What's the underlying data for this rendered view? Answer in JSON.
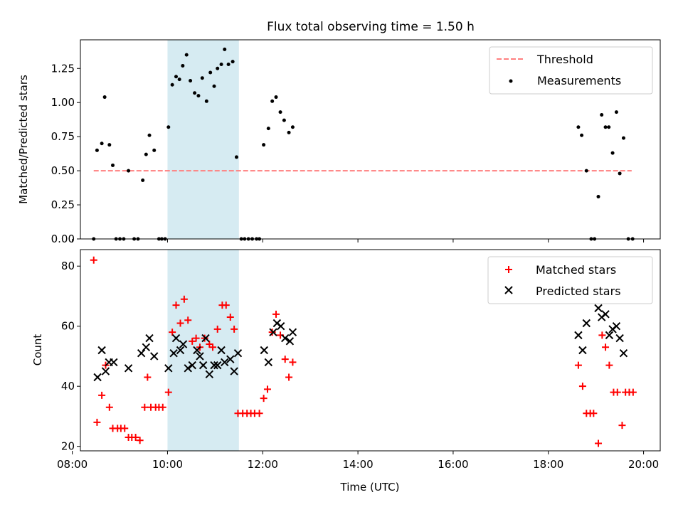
{
  "title": "Flux total observing time = 1.50 h",
  "colors": {
    "threshold": "#ff7f7f",
    "measurement": "#000000",
    "matched": "#ff0000",
    "predicted": "#000000",
    "span": "#add8e6"
  },
  "chart_data": [
    {
      "type": "scatter",
      "ylabel": "Matched/Predicted stars",
      "xlim": [
        8.17,
        20.35
      ],
      "ylim": [
        0.0,
        1.46
      ],
      "yticks": [
        0.0,
        0.25,
        0.5,
        0.75,
        1.0,
        1.25
      ],
      "ytick_labels": [
        "0.00",
        "0.25",
        "0.50",
        "0.75",
        "1.00",
        "1.25"
      ],
      "highlight_span": [
        10.0,
        11.5
      ],
      "legend": {
        "placement": "top-right",
        "entries": [
          "Threshold",
          "Measurements"
        ]
      },
      "threshold": {
        "name": "Threshold",
        "y": 0.5,
        "x_range": [
          8.45,
          19.75
        ]
      },
      "series": [
        {
          "name": "Measurements",
          "points": [
            [
              8.45,
              0.0
            ],
            [
              8.52,
              0.65
            ],
            [
              8.62,
              0.7
            ],
            [
              8.68,
              1.04
            ],
            [
              8.78,
              0.69
            ],
            [
              8.85,
              0.54
            ],
            [
              8.92,
              0.0
            ],
            [
              9.0,
              0.0
            ],
            [
              9.08,
              0.0
            ],
            [
              9.18,
              0.5
            ],
            [
              9.3,
              0.0
            ],
            [
              9.38,
              0.0
            ],
            [
              9.48,
              0.43
            ],
            [
              9.55,
              0.62
            ],
            [
              9.62,
              0.76
            ],
            [
              9.72,
              0.65
            ],
            [
              9.82,
              0.0
            ],
            [
              9.88,
              0.0
            ],
            [
              9.95,
              0.0
            ],
            [
              10.02,
              0.82
            ],
            [
              10.1,
              1.13
            ],
            [
              10.18,
              1.19
            ],
            [
              10.25,
              1.17
            ],
            [
              10.32,
              1.27
            ],
            [
              10.4,
              1.35
            ],
            [
              10.48,
              1.16
            ],
            [
              10.57,
              1.07
            ],
            [
              10.65,
              1.05
            ],
            [
              10.73,
              1.18
            ],
            [
              10.82,
              1.01
            ],
            [
              10.9,
              1.22
            ],
            [
              10.98,
              1.12
            ],
            [
              11.05,
              1.25
            ],
            [
              11.13,
              1.28
            ],
            [
              11.2,
              1.39
            ],
            [
              11.28,
              1.28
            ],
            [
              11.37,
              1.3
            ],
            [
              11.45,
              0.6
            ],
            [
              11.55,
              0.0
            ],
            [
              11.62,
              0.0
            ],
            [
              11.7,
              0.0
            ],
            [
              11.78,
              0.0
            ],
            [
              11.87,
              0.0
            ],
            [
              11.93,
              0.0
            ],
            [
              12.02,
              0.69
            ],
            [
              12.12,
              0.81
            ],
            [
              12.2,
              1.01
            ],
            [
              12.28,
              1.04
            ],
            [
              12.37,
              0.93
            ],
            [
              12.45,
              0.87
            ],
            [
              12.55,
              0.78
            ],
            [
              12.63,
              0.82
            ],
            [
              18.63,
              0.82
            ],
            [
              18.7,
              0.76
            ],
            [
              18.8,
              0.5
            ],
            [
              18.9,
              0.0
            ],
            [
              18.97,
              0.0
            ],
            [
              19.05,
              0.31
            ],
            [
              19.12,
              0.91
            ],
            [
              19.2,
              0.82
            ],
            [
              19.27,
              0.82
            ],
            [
              19.35,
              0.63
            ],
            [
              19.43,
              0.93
            ],
            [
              19.5,
              0.48
            ],
            [
              19.58,
              0.74
            ],
            [
              19.68,
              0.0
            ],
            [
              19.77,
              0.0
            ]
          ]
        }
      ]
    },
    {
      "type": "scatter",
      "xlabel": "Time (UTC)",
      "ylabel": "Count",
      "xlim": [
        8.17,
        20.35
      ],
      "ylim": [
        18.5,
        85.5
      ],
      "yticks": [
        20,
        40,
        60,
        80
      ],
      "ytick_labels": [
        "20",
        "40",
        "60",
        "80"
      ],
      "xticks": [
        8,
        10,
        12,
        14,
        16,
        18,
        20
      ],
      "xtick_labels": [
        "08:00",
        "10:00",
        "12:00",
        "14:00",
        "16:00",
        "18:00",
        "20:00"
      ],
      "highlight_span": [
        10.0,
        11.5
      ],
      "legend": {
        "placement": "top-right",
        "entries": [
          "Matched stars",
          "Predicted stars"
        ]
      },
      "series": [
        {
          "name": "Matched stars",
          "marker": "plus",
          "points": [
            [
              8.45,
              82
            ],
            [
              8.52,
              28
            ],
            [
              8.62,
              37
            ],
            [
              8.7,
              47
            ],
            [
              8.78,
              33
            ],
            [
              8.85,
              26
            ],
            [
              8.95,
              26
            ],
            [
              9.02,
              26
            ],
            [
              9.1,
              26
            ],
            [
              9.18,
              23
            ],
            [
              9.25,
              23
            ],
            [
              9.33,
              23
            ],
            [
              9.42,
              22
            ],
            [
              9.52,
              33
            ],
            [
              9.58,
              43
            ],
            [
              9.65,
              33
            ],
            [
              9.75,
              33
            ],
            [
              9.82,
              33
            ],
            [
              9.9,
              33
            ],
            [
              10.02,
              38
            ],
            [
              10.1,
              58
            ],
            [
              10.18,
              67
            ],
            [
              10.27,
              61
            ],
            [
              10.35,
              69
            ],
            [
              10.43,
              62
            ],
            [
              10.52,
              55
            ],
            [
              10.6,
              56
            ],
            [
              10.68,
              53
            ],
            [
              10.78,
              56
            ],
            [
              10.88,
              54
            ],
            [
              10.95,
              53
            ],
            [
              11.05,
              59
            ],
            [
              11.15,
              67
            ],
            [
              11.23,
              67
            ],
            [
              11.32,
              63
            ],
            [
              11.4,
              59
            ],
            [
              11.48,
              31
            ],
            [
              11.58,
              31
            ],
            [
              11.67,
              31
            ],
            [
              11.75,
              31
            ],
            [
              11.83,
              31
            ],
            [
              11.93,
              31
            ],
            [
              12.02,
              36
            ],
            [
              12.1,
              39
            ],
            [
              12.2,
              58
            ],
            [
              12.28,
              64
            ],
            [
              12.37,
              57
            ],
            [
              12.47,
              49
            ],
            [
              12.55,
              43
            ],
            [
              12.63,
              48
            ],
            [
              18.63,
              47
            ],
            [
              18.72,
              40
            ],
            [
              18.8,
              31
            ],
            [
              18.88,
              31
            ],
            [
              18.95,
              31
            ],
            [
              19.05,
              21
            ],
            [
              19.13,
              57
            ],
            [
              19.2,
              53
            ],
            [
              19.28,
              47
            ],
            [
              19.37,
              38
            ],
            [
              19.45,
              38
            ],
            [
              19.55,
              27
            ],
            [
              19.62,
              38
            ],
            [
              19.7,
              38
            ],
            [
              19.78,
              38
            ]
          ]
        },
        {
          "name": "Predicted stars",
          "marker": "x",
          "points": [
            [
              8.53,
              43
            ],
            [
              8.62,
              52
            ],
            [
              8.7,
              45
            ],
            [
              8.77,
              48
            ],
            [
              8.87,
              48
            ],
            [
              9.18,
              46
            ],
            [
              9.45,
              51
            ],
            [
              9.55,
              53
            ],
            [
              9.62,
              56
            ],
            [
              9.72,
              50
            ],
            [
              10.02,
              46
            ],
            [
              10.13,
              51
            ],
            [
              10.18,
              56
            ],
            [
              10.27,
              52
            ],
            [
              10.33,
              54
            ],
            [
              10.43,
              46
            ],
            [
              10.52,
              47
            ],
            [
              10.62,
              52
            ],
            [
              10.68,
              50
            ],
            [
              10.75,
              47
            ],
            [
              10.8,
              56
            ],
            [
              10.88,
              44
            ],
            [
              10.98,
              47
            ],
            [
              11.05,
              47
            ],
            [
              11.13,
              52
            ],
            [
              11.2,
              48
            ],
            [
              11.32,
              49
            ],
            [
              11.4,
              45
            ],
            [
              11.48,
              51
            ],
            [
              12.03,
              52
            ],
            [
              12.12,
              48
            ],
            [
              12.22,
              58
            ],
            [
              12.3,
              61
            ],
            [
              12.38,
              60
            ],
            [
              12.47,
              56
            ],
            [
              12.57,
              55
            ],
            [
              12.63,
              58
            ],
            [
              18.63,
              57
            ],
            [
              18.72,
              52
            ],
            [
              18.8,
              61
            ],
            [
              19.05,
              66
            ],
            [
              19.12,
              63
            ],
            [
              19.2,
              64
            ],
            [
              19.28,
              57
            ],
            [
              19.35,
              59
            ],
            [
              19.43,
              60
            ],
            [
              19.5,
              56
            ],
            [
              19.58,
              51
            ]
          ]
        }
      ]
    }
  ]
}
